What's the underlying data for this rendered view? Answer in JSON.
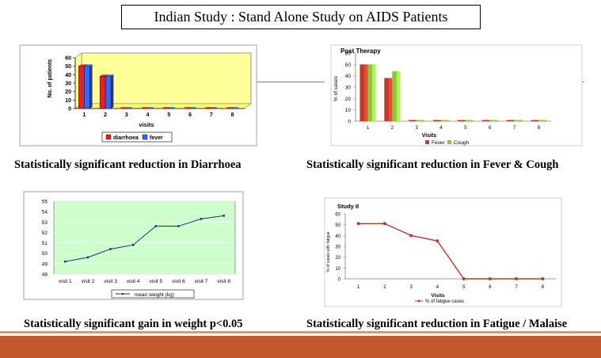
{
  "slide_title": "Indian Study : Stand Alone Study on AIDS Patients",
  "captions": {
    "diarrhoea": "Statistically significant reduction in Diarrhoea",
    "fever_cough": "Statistically significant reduction in Fever & Cough",
    "weight": "Statistically significant gain in weight p<0.05",
    "fatigue": "Statistically significant reduction in Fatigue / Malaise"
  },
  "colors": {
    "footer": "#c0582b",
    "diarrhoea": "#e52222",
    "fever_blue": "#3366ff",
    "fever_red": "#c0392b",
    "cough_green": "#8dc63f",
    "weight_line": "#1f2d7a",
    "fatigue_line": "#c0392b"
  },
  "chart_data": [
    {
      "type": "bar",
      "title": "",
      "xlabel": "visits",
      "ylabel": "No. of patients",
      "ylim": [
        0,
        60
      ],
      "yticks": [
        "0",
        "10",
        "20",
        "30",
        "40",
        "50",
        "60"
      ],
      "categories": [
        "1",
        "2",
        "3",
        "4",
        "5",
        "6",
        "7",
        "8"
      ],
      "series": [
        {
          "name": "diarrhoea",
          "values": [
            50,
            38,
            0,
            0,
            0,
            0,
            0,
            0
          ]
        },
        {
          "name": "fever",
          "values": [
            50,
            38,
            0,
            0,
            0,
            0,
            0,
            0
          ]
        }
      ],
      "legend": "bottom",
      "grid": false
    },
    {
      "type": "bar",
      "title": "Post Therapy",
      "xlabel": "Visits",
      "ylabel": "% of cases",
      "ylim": [
        0,
        60
      ],
      "yticks": [
        "0",
        "10",
        "20",
        "30",
        "40",
        "50",
        "60"
      ],
      "categories": [
        "1",
        "2",
        "3",
        "4",
        "5",
        "6",
        "7",
        "8"
      ],
      "series": [
        {
          "name": "Fever",
          "values": [
            50,
            38,
            0,
            0,
            0,
            0,
            0,
            0
          ]
        },
        {
          "name": "Cough",
          "values": [
            50,
            44,
            0,
            0,
            0,
            0,
            0,
            0
          ]
        }
      ],
      "legend": "bottom",
      "grid": false
    },
    {
      "type": "line",
      "title": "",
      "xlabel": "",
      "ylabel": "",
      "ylim": [
        48,
        55
      ],
      "yticks": [
        "48",
        "49",
        "50",
        "51",
        "52",
        "53",
        "54",
        "55"
      ],
      "categories": [
        "visit 1",
        "visit 2",
        "visit 3",
        "visit 4",
        "visit 5",
        "visit 6",
        "visit 7",
        "visit 8"
      ],
      "series": [
        {
          "name": "mean weight (kg)",
          "values": [
            49.2,
            49.6,
            50.4,
            50.8,
            52.6,
            52.6,
            53.3,
            53.6
          ]
        }
      ],
      "legend": "bottom",
      "grid": true
    },
    {
      "type": "line",
      "title": "Study II",
      "xlabel": "Visits",
      "ylabel": "% of cases with fatigue",
      "ylim": [
        0,
        60
      ],
      "yticks": [
        "0",
        "10",
        "20",
        "30",
        "40",
        "50",
        "60"
      ],
      "categories": [
        "1",
        "2",
        "3",
        "4",
        "5",
        "6",
        "7",
        "8"
      ],
      "series": [
        {
          "name": "% of fatigue cases",
          "values": [
            51,
            51,
            40,
            35,
            0,
            0,
            0,
            0
          ]
        }
      ],
      "legend": "bottom",
      "grid": false
    }
  ]
}
